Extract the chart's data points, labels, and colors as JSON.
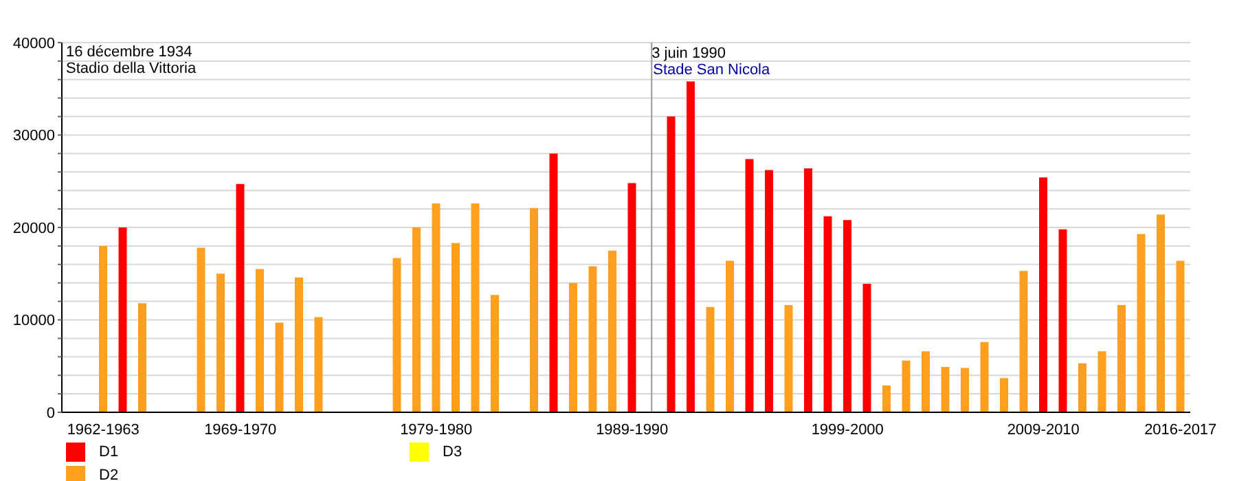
{
  "chart_data": {
    "type": "bar",
    "categories": [
      "1962-1963",
      null,
      null,
      null,
      null,
      null,
      null,
      "1969-1970",
      null,
      null,
      null,
      null,
      null,
      null,
      null,
      null,
      null,
      "1979-1980",
      null,
      null,
      null,
      null,
      null,
      null,
      null,
      null,
      null,
      "1989-1990",
      null,
      null,
      null,
      null,
      null,
      null,
      null,
      null,
      null,
      null,
      "1999-2000",
      null,
      null,
      null,
      null,
      null,
      null,
      null,
      null,
      null,
      "2009-2010",
      null,
      null,
      null,
      null,
      null,
      null,
      "2016-2017"
    ],
    "series": [
      {
        "name": "D1",
        "color": "#ff0000",
        "values": [
          null,
          20000,
          null,
          null,
          null,
          null,
          null,
          24700,
          null,
          null,
          null,
          null,
          null,
          null,
          null,
          null,
          null,
          null,
          null,
          null,
          null,
          null,
          null,
          28000,
          null,
          null,
          null,
          24800,
          null,
          32000,
          35800,
          null,
          null,
          27400,
          26200,
          null,
          26400,
          21200,
          20800,
          13900,
          null,
          null,
          null,
          null,
          null,
          null,
          null,
          null,
          25400,
          19800,
          null,
          null,
          null,
          null,
          null,
          null
        ]
      },
      {
        "name": "D2",
        "color": "#ff9f1f",
        "values": [
          18000,
          null,
          11800,
          null,
          null,
          17800,
          15000,
          null,
          15500,
          9700,
          14600,
          10300,
          null,
          null,
          null,
          16700,
          20000,
          22600,
          18300,
          22600,
          12700,
          null,
          22100,
          null,
          14000,
          15800,
          17500,
          null,
          null,
          null,
          null,
          11400,
          16400,
          null,
          null,
          11600,
          null,
          null,
          null,
          null,
          2900,
          5600,
          6600,
          4900,
          4800,
          7600,
          3700,
          15300,
          null,
          null,
          5300,
          6600,
          11600,
          19300,
          21400,
          16400
        ]
      },
      {
        "name": "D3",
        "color": "#ffff00",
        "values": [
          null,
          null,
          null,
          null,
          null,
          null,
          null,
          null,
          null,
          null,
          null,
          null,
          null,
          null,
          null,
          null,
          null,
          null,
          null,
          null,
          null,
          null,
          null,
          null,
          null,
          null,
          null,
          null,
          null,
          null,
          null,
          null,
          null,
          null,
          null,
          null,
          null,
          null,
          null,
          null,
          null,
          null,
          null,
          null,
          null,
          null,
          null,
          null,
          null,
          null,
          null,
          null,
          null,
          null,
          null,
          null
        ]
      }
    ],
    "ylim": [
      0,
      40000
    ],
    "yticks": [
      0,
      {
        "value": 2000,
        "label": null
      },
      {
        "value": 4000,
        "label": null
      },
      {
        "value": 6000,
        "label": null
      },
      {
        "value": 8000,
        "label": null
      },
      10000,
      {
        "value": 12000,
        "label": null
      },
      {
        "value": 14000,
        "label": null
      },
      {
        "value": 16000,
        "label": null
      },
      {
        "value": 18000,
        "label": null
      },
      20000,
      {
        "value": 22000,
        "label": null
      },
      {
        "value": 24000,
        "label": null
      },
      {
        "value": 26000,
        "label": null
      },
      {
        "value": 28000,
        "label": null
      },
      30000,
      {
        "value": 32000,
        "label": null
      },
      {
        "value": 34000,
        "label": null
      },
      {
        "value": 36000,
        "label": null
      },
      {
        "value": 38000,
        "label": null
      },
      40000
    ],
    "grid": "y",
    "legend": "bottom left",
    "annotations": [
      "16 décembre 1934",
      "Stadio della Vittoria",
      "3 juin 1990",
      "Stade San Nicola"
    ]
  }
}
